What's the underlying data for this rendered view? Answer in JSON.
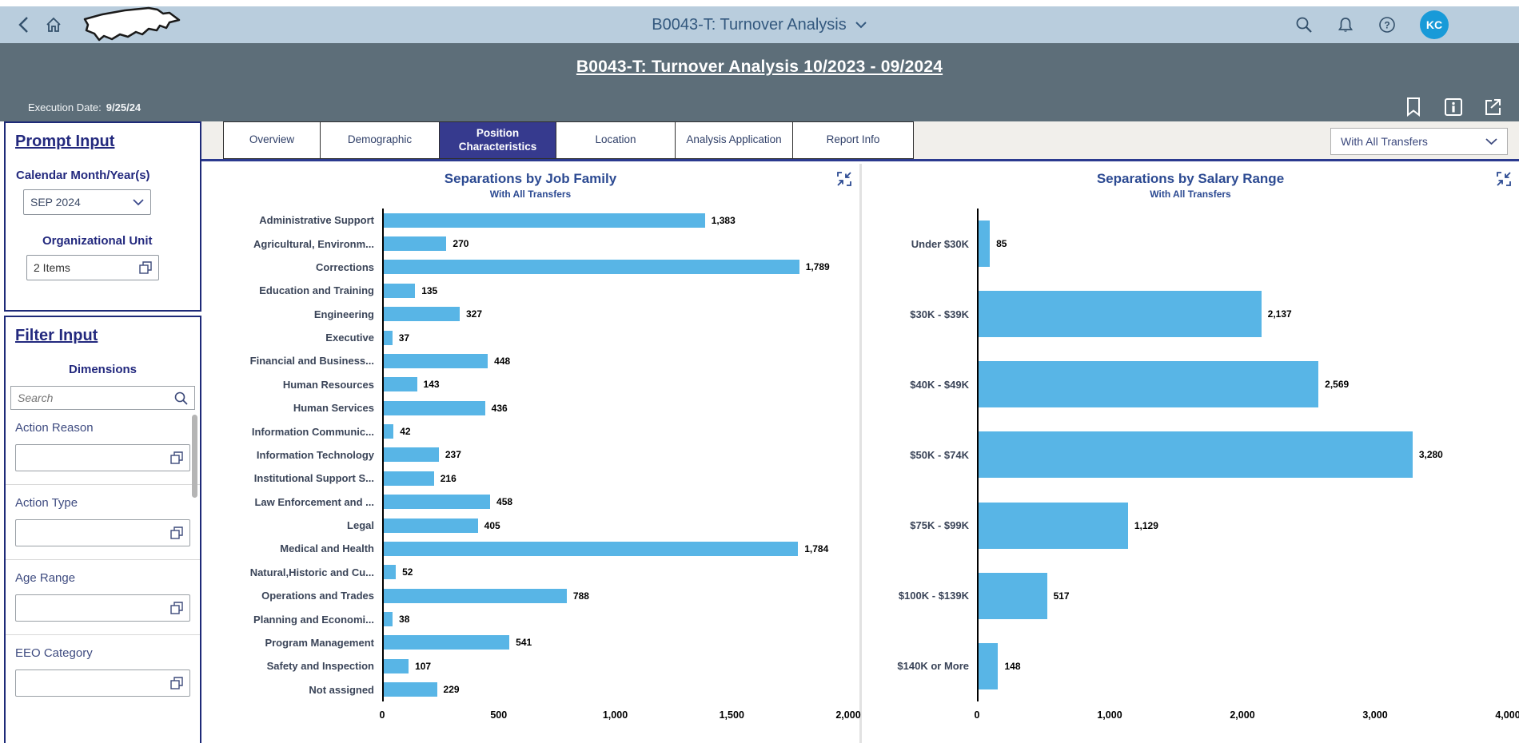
{
  "top_bar": {
    "title": "B0043-T: Turnover Analysis",
    "avatar_initials": "KC",
    "avatar_color": "#189ad8",
    "icons": [
      "back-icon",
      "home-icon",
      "nc-state-logo",
      "search-icon",
      "bell-icon",
      "help-icon"
    ]
  },
  "header": {
    "title": "B0043-T: Turnover Analysis 10/2023 - 09/2024",
    "execution_date_label": "Execution Date:",
    "execution_date_value": "9/25/24",
    "icons": [
      "bookmark-icon",
      "info-icon",
      "share-icon"
    ],
    "background_color": "#5d6e79"
  },
  "tabs": [
    {
      "label": "Overview",
      "active": false,
      "width": 122
    },
    {
      "label": "Demographic",
      "active": false,
      "width": 150
    },
    {
      "label": "Position Characteristics",
      "active": true,
      "width": 147
    },
    {
      "label": "Location",
      "active": false,
      "width": 150
    },
    {
      "label": "Analysis Application",
      "active": false,
      "width": 148
    },
    {
      "label": "Report Info",
      "active": false,
      "width": 152
    }
  ],
  "transfer_dropdown": {
    "value": "With All Transfers"
  },
  "sidebar": {
    "prompt_input": {
      "heading": "Prompt Input",
      "calendar_label": "Calendar Month/Year(s)",
      "calendar_value": "SEP 2024",
      "org_unit_label": "Organizational Unit",
      "org_unit_value": "2 Items"
    },
    "filter_input": {
      "heading": "Filter Input",
      "dimensions_label": "Dimensions",
      "search_placeholder": "Search",
      "fields": [
        {
          "label": "Action Reason",
          "value": ""
        },
        {
          "label": "Action Type",
          "value": ""
        },
        {
          "label": "Age Range",
          "value": ""
        },
        {
          "label": "EEO Category",
          "value": ""
        }
      ]
    }
  },
  "chart_data": [
    {
      "type": "bar",
      "orientation": "horizontal",
      "title": "Separations by Job Family",
      "subtitle": "With All Transfers",
      "bar_color": "#58b5e6",
      "xlim": [
        0,
        2000
      ],
      "xticks": [
        "0",
        "500",
        "1,000",
        "1,500",
        "2,000"
      ],
      "categories": [
        "Administrative Support",
        "Agricultural, Environm...",
        "Corrections",
        "Education and Training",
        "Engineering",
        "Executive",
        "Financial and Business...",
        "Human Resources",
        "Human Services",
        "Information Communic...",
        "Information Technology",
        "Institutional Support S...",
        "Law Enforcement and ...",
        "Legal",
        "Medical and Health",
        "Natural,Historic and Cu...",
        "Operations and Trades",
        "Planning and Economi...",
        "Program Management",
        "Safety and Inspection",
        "Not assigned"
      ],
      "values": [
        1383,
        270,
        1789,
        135,
        327,
        37,
        448,
        143,
        436,
        42,
        237,
        216,
        458,
        405,
        1784,
        52,
        788,
        38,
        541,
        107,
        229
      ],
      "value_labels": [
        "1,383",
        "270",
        "1,789",
        "135",
        "327",
        "37",
        "448",
        "143",
        "436",
        "42",
        "237",
        "216",
        "458",
        "405",
        "1,784",
        "52",
        "788",
        "38",
        "541",
        "107",
        "229"
      ]
    },
    {
      "type": "bar",
      "orientation": "horizontal",
      "title": "Separations by Salary Range",
      "subtitle": "With All Transfers",
      "bar_color": "#58b5e6",
      "xlim": [
        0,
        4000
      ],
      "xticks": [
        "0",
        "1,000",
        "2,000",
        "3,000",
        "4,000"
      ],
      "categories": [
        "Under $30K",
        "$30K - $39K",
        "$40K - $49K",
        "$50K - $74K",
        "$75K - $99K",
        "$100K - $139K",
        "$140K or More"
      ],
      "values": [
        85,
        2137,
        2569,
        3280,
        1129,
        517,
        148
      ],
      "value_labels": [
        "85",
        "2,137",
        "2,569",
        "3,280",
        "1,129",
        "517",
        "148"
      ]
    }
  ]
}
